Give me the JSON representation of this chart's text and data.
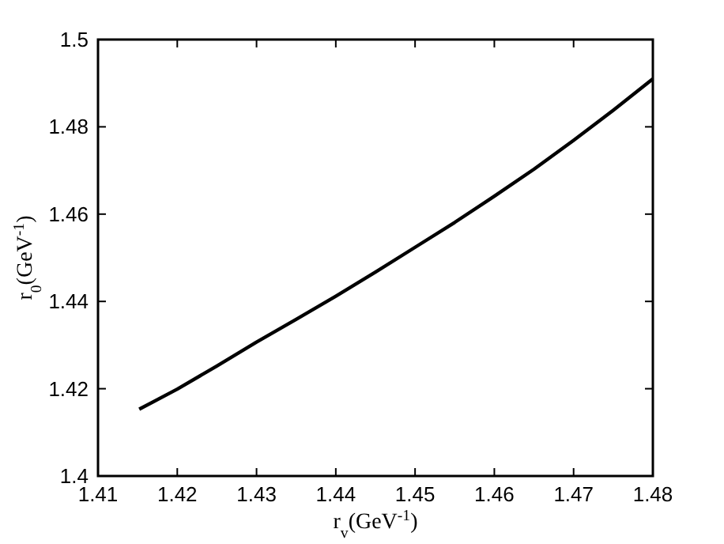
{
  "chart_data": {
    "type": "line",
    "xlabel": "r$_{v}$(GeV$^{-1}$)",
    "ylabel": "r$_{0}$(GeV$^{-1}$)",
    "x": [
      1.4152,
      1.42,
      1.425,
      1.43,
      1.435,
      1.44,
      1.445,
      1.45,
      1.455,
      1.46,
      1.465,
      1.47,
      1.475,
      1.48
    ],
    "series": [
      {
        "color": "#000000",
        "values": [
          1.4153,
          1.4199,
          1.4252,
          1.4307,
          1.4359,
          1.4412,
          1.4467,
          1.4524,
          1.4581,
          1.4641,
          1.4703,
          1.4769,
          1.4838,
          1.491
        ]
      }
    ],
    "xlim": [
      1.41,
      1.48
    ],
    "ylim": [
      1.4,
      1.5
    ],
    "xticks": [
      1.41,
      1.42,
      1.43,
      1.44,
      1.45,
      1.46,
      1.47,
      1.48
    ],
    "yticks": [
      1.4,
      1.42,
      1.44,
      1.46,
      1.48,
      1.5
    ],
    "grid": false,
    "marker": "none",
    "line_style": "solid"
  }
}
